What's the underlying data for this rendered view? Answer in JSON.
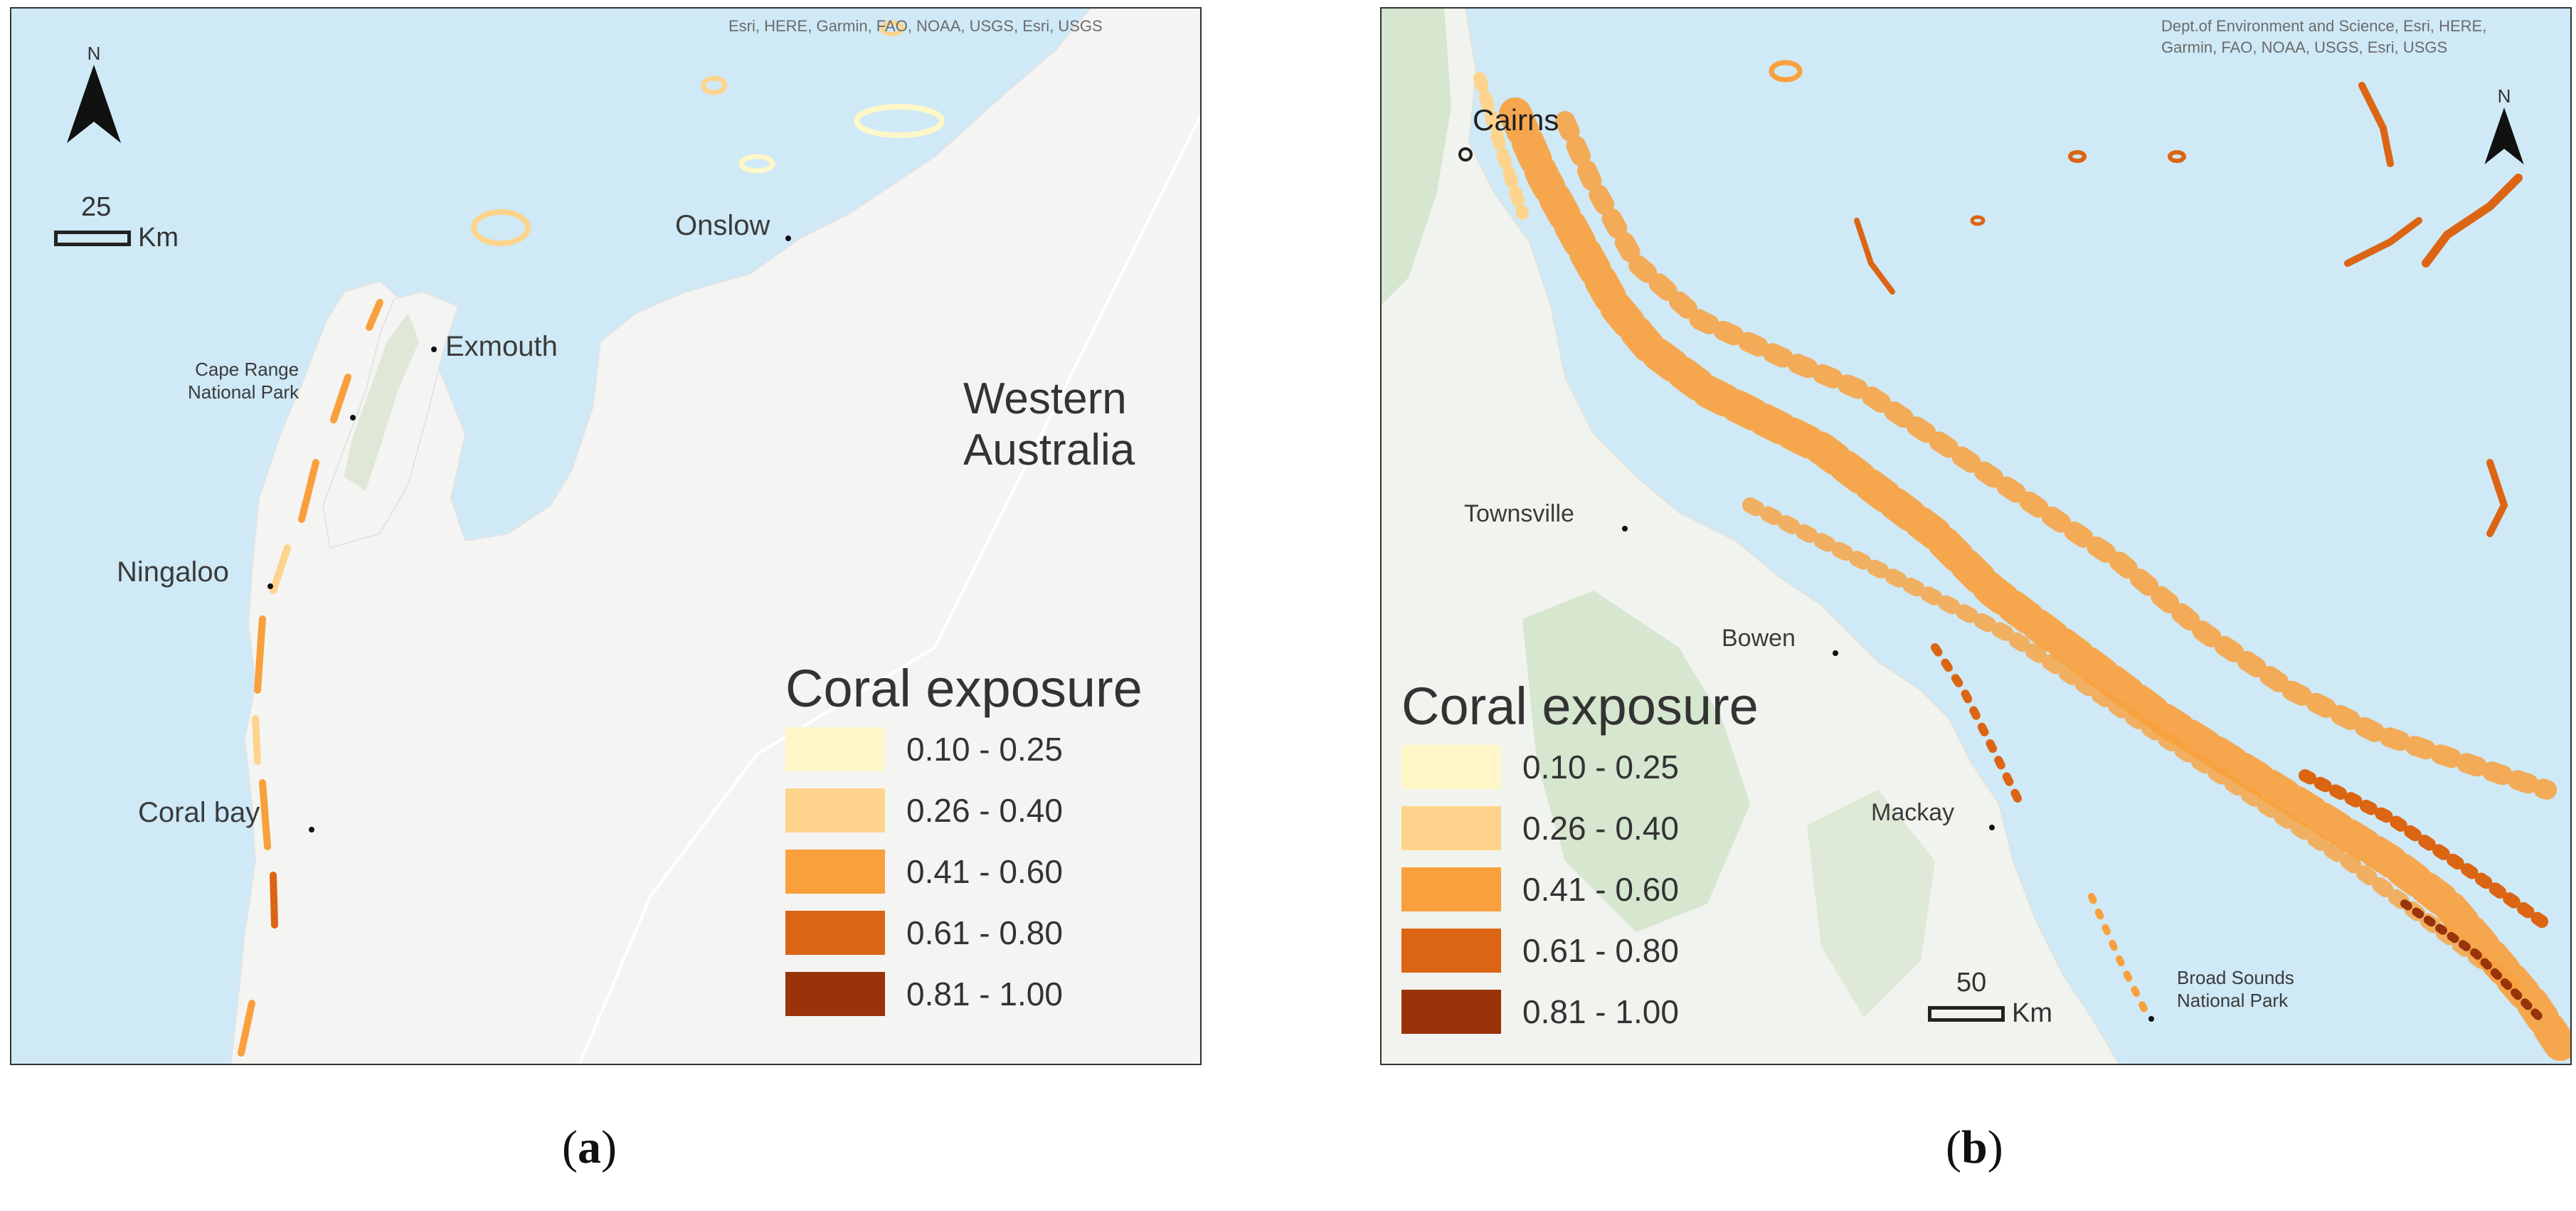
{
  "panels": [
    {
      "caption_letter": "a",
      "credits": "Esri, HERE, Garmin, FAO, NOAA, USGS, Esri, USGS",
      "north_label": "N",
      "scale": {
        "value": "25",
        "unit": "Km"
      },
      "places": {
        "onslow": "Onslow",
        "exmouth": "Exmouth",
        "cape_range": "Cape Range",
        "national_park": "National Park",
        "ningaloo": "Ningaloo",
        "coral_bay": "Coral bay"
      },
      "region_line1": "Western",
      "region_line2": "Australia",
      "legend": {
        "title": "Coral exposure",
        "classes": [
          "0.10 - 0.25",
          "0.26 - 0.40",
          "0.41 - 0.60",
          "0.61 - 0.80",
          "0.81 - 1.00"
        ]
      }
    },
    {
      "caption_letter": "b",
      "credits": "Dept.of Environment and Science, Esri, HERE, Garmin, FAO, NOAA, USGS, Esri, USGS",
      "north_label": "N",
      "scale": {
        "value": "50",
        "unit": "Km"
      },
      "places": {
        "cairns": "Cairns",
        "townsville": "Townsville",
        "bowen": "Bowen",
        "mackay": "Mackay",
        "broad_sounds": "Broad Sounds",
        "national_park": "National Park"
      },
      "legend": {
        "title": "Coral exposure",
        "classes": [
          "0.10 - 0.25",
          "0.26 - 0.40",
          "0.41 - 0.60",
          "0.61 - 0.80",
          "0.81 - 1.00"
        ]
      }
    }
  ],
  "colors": {
    "ocean": "#cfe9f6",
    "land": "#f4f4f2",
    "park": "#dfe8d6",
    "forest": "#d6e6cf",
    "class_colors": [
      "#fff7c8",
      "#fed48c",
      "#f9a03c",
      "#dc6514",
      "#98330a"
    ]
  }
}
